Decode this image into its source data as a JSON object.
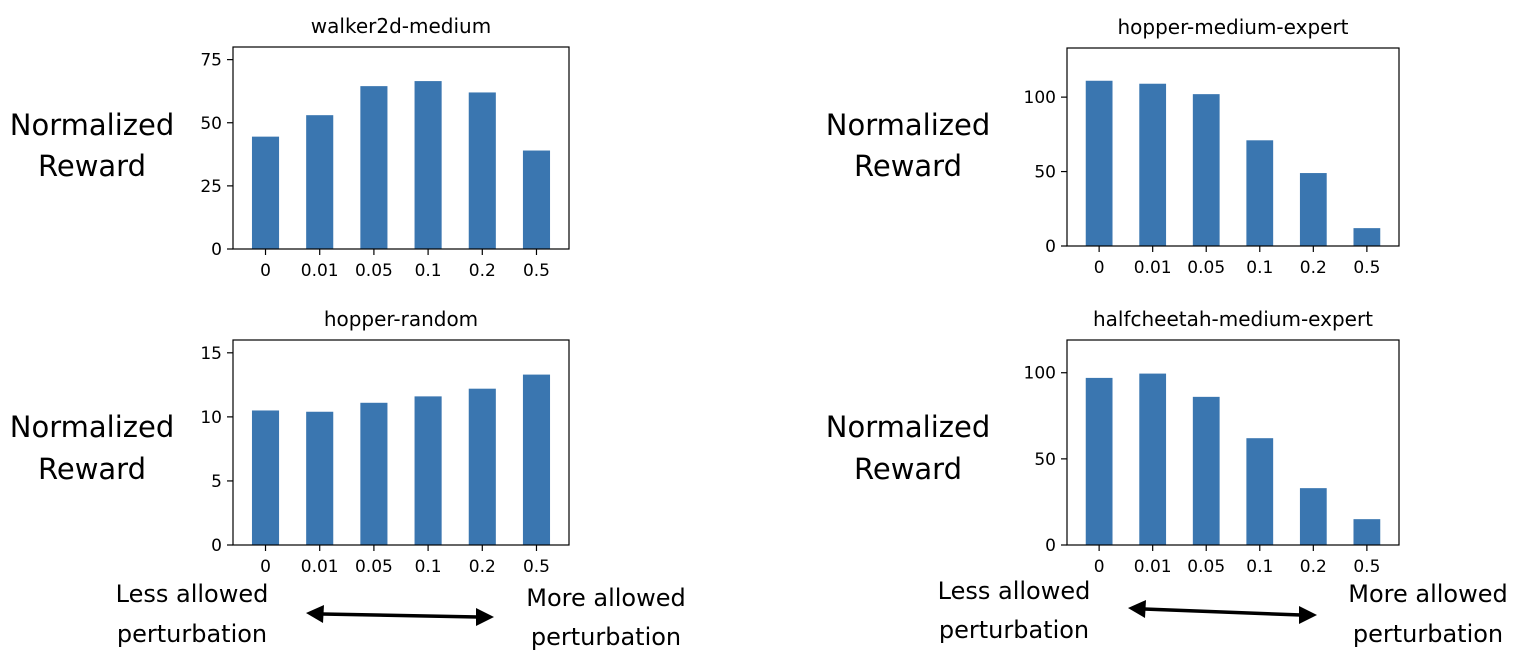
{
  "y_axis_title_lines": [
    "Normalized",
    "Reward"
  ],
  "left_annotation_lines": [
    "Less allowed",
    "perturbation"
  ],
  "right_annotation_lines": [
    "More allowed",
    "perturbation"
  ],
  "chart_data": [
    {
      "type": "bar",
      "title": "walker2d-medium",
      "categories": [
        "0",
        "0.01",
        "0.05",
        "0.1",
        "0.2",
        "0.5"
      ],
      "values": [
        44.5,
        53,
        64.5,
        66.5,
        62,
        39
      ],
      "ylim": [
        0,
        80
      ],
      "yticks": [
        0,
        25,
        50,
        75
      ],
      "bar_color": "#3a76b0"
    },
    {
      "type": "bar",
      "title": "hopper-medium-expert",
      "categories": [
        "0",
        "0.01",
        "0.05",
        "0.1",
        "0.2",
        "0.5"
      ],
      "values": [
        111,
        109,
        102,
        71,
        49,
        12
      ],
      "ylim": [
        0,
        133
      ],
      "yticks": [
        0,
        50,
        100
      ],
      "bar_color": "#3a76b0"
    },
    {
      "type": "bar",
      "title": "hopper-random",
      "categories": [
        "0",
        "0.01",
        "0.05",
        "0.1",
        "0.2",
        "0.5"
      ],
      "values": [
        10.5,
        10.4,
        11.1,
        11.6,
        12.2,
        13.3
      ],
      "ylim": [
        0,
        16
      ],
      "yticks": [
        0,
        5,
        10,
        15
      ],
      "bar_color": "#3a76b0"
    },
    {
      "type": "bar",
      "title": "halfcheetah-medium-expert",
      "categories": [
        "0",
        "0.01",
        "0.05",
        "0.1",
        "0.2",
        "0.5"
      ],
      "values": [
        97,
        99.5,
        86,
        62,
        33,
        15
      ],
      "ylim": [
        0,
        119
      ],
      "yticks": [
        0,
        50,
        100
      ],
      "bar_color": "#3a76b0"
    }
  ]
}
